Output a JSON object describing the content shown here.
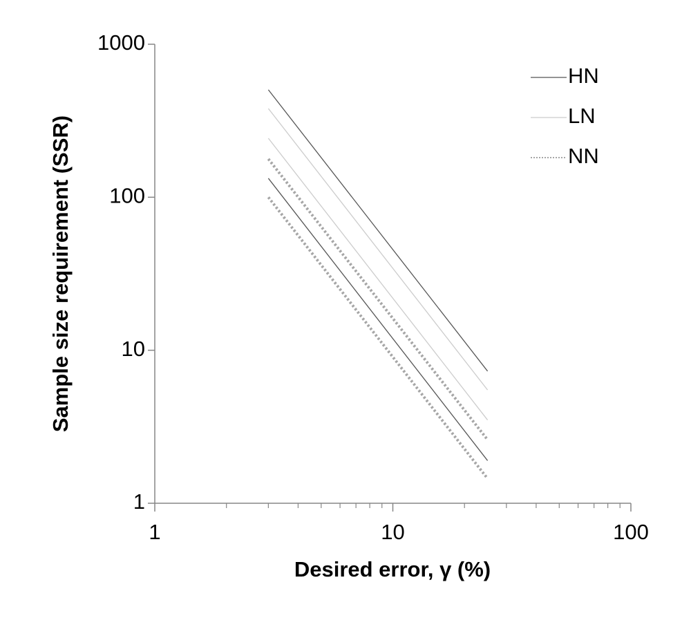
{
  "chart_data": {
    "type": "line",
    "xlabel": "Desired error, γ (%)",
    "ylabel": "Sample size requirement (SSR)",
    "x": [
      3,
      25
    ],
    "series": [
      {
        "name": "HN",
        "color": "#555555",
        "dash": "solid",
        "lines": [
          [
            504,
            7.3
          ],
          [
            133,
            1.9
          ]
        ]
      },
      {
        "name": "LN",
        "color": "#cccccc",
        "dash": "solid",
        "lines": [
          [
            380,
            5.5
          ],
          [
            243,
            3.5
          ]
        ]
      },
      {
        "name": "NN",
        "color": "#a6a6a6",
        "dash": "dotted",
        "lines": [
          [
            178,
            2.6
          ],
          [
            100,
            1.45
          ]
        ]
      }
    ],
    "xlim": [
      1,
      100
    ],
    "ylim": [
      1,
      1000
    ],
    "xticks": [
      1,
      10,
      100
    ],
    "yticks": [
      1,
      10,
      100,
      1000
    ],
    "xscale": "log",
    "yscale": "log",
    "legend": "upper right"
  }
}
